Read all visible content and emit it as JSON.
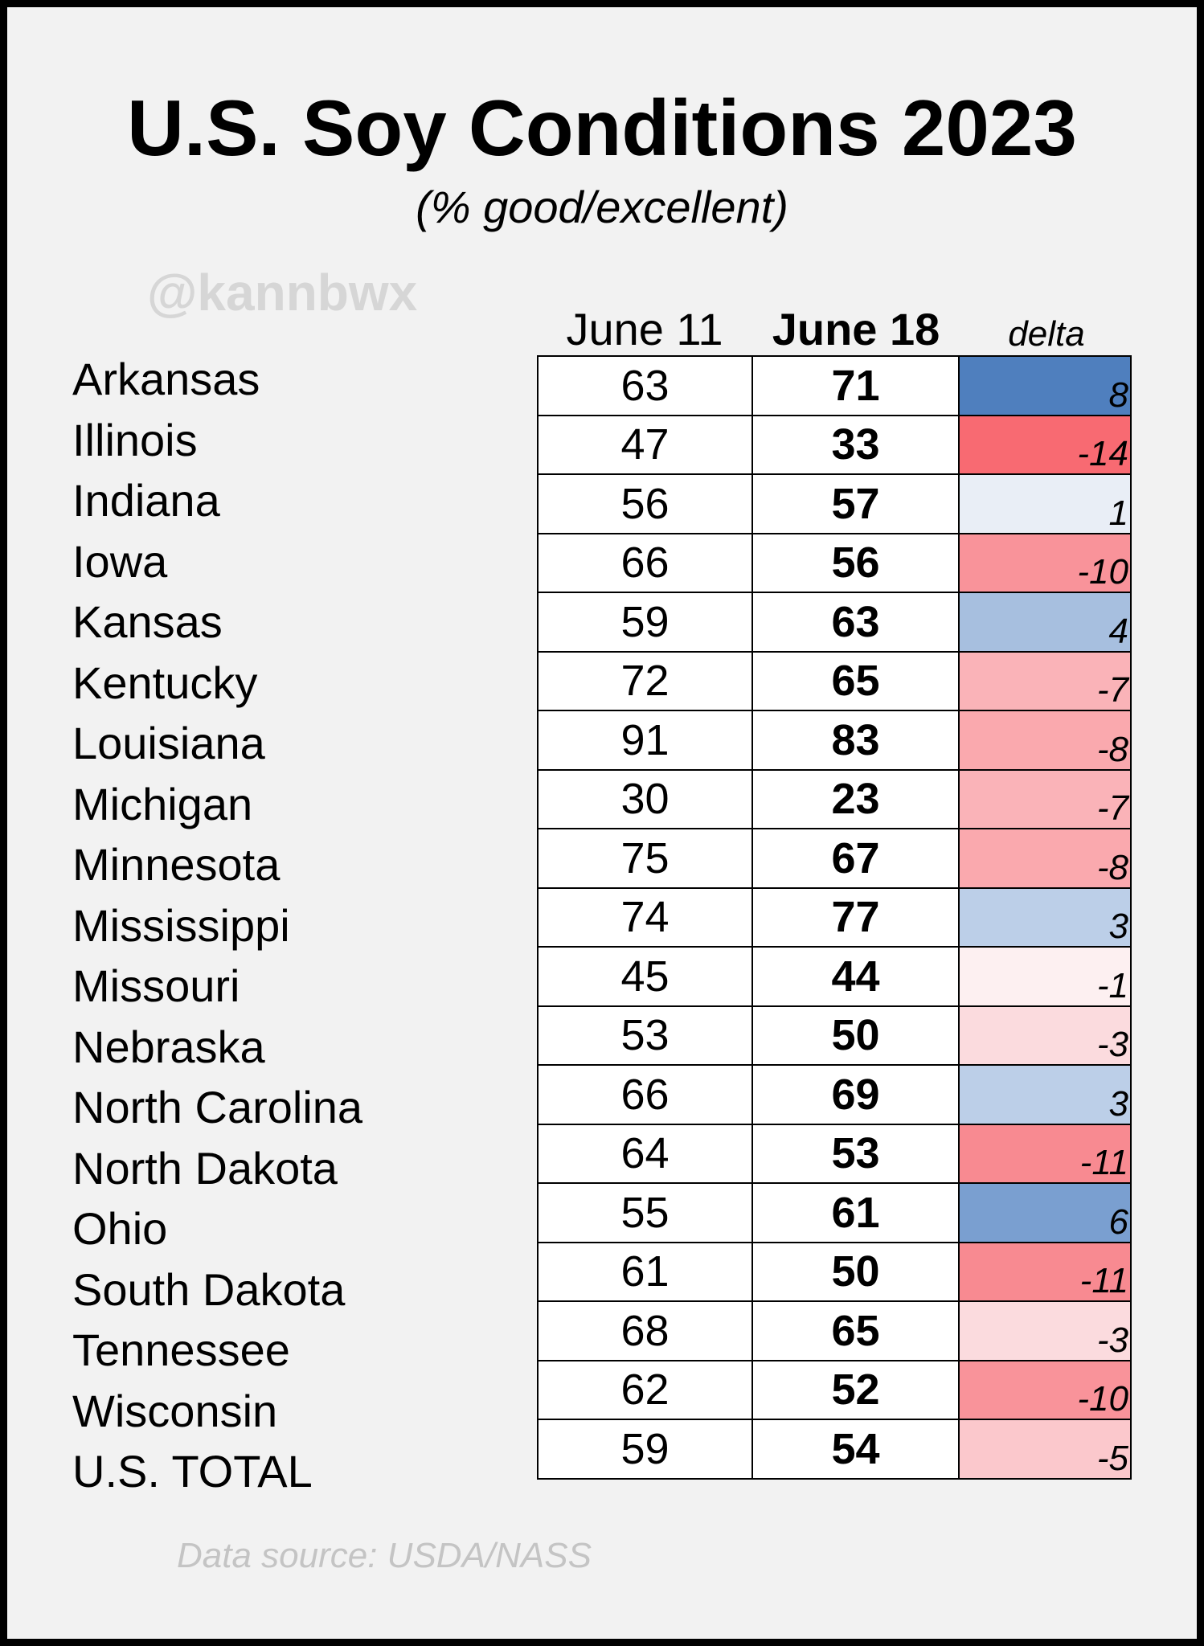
{
  "chart_data": {
    "type": "table",
    "title": "U.S. Soy Conditions 2023",
    "subtitle": "(% good/excellent)",
    "columns": [
      "June 11",
      "June 18",
      "delta"
    ],
    "rows": [
      {
        "state": "Arkansas",
        "june11": 63,
        "june18": 71,
        "delta": 8,
        "color": "#4f7fbe"
      },
      {
        "state": "Illinois",
        "june11": 47,
        "june18": 33,
        "delta": -14,
        "color": "#f86a72"
      },
      {
        "state": "Indiana",
        "june11": 56,
        "june18": 57,
        "delta": 1,
        "color": "#e9eef6"
      },
      {
        "state": "Iowa",
        "june11": 66,
        "june18": 56,
        "delta": -10,
        "color": "#f9939a"
      },
      {
        "state": "Kansas",
        "june11": 59,
        "june18": 63,
        "delta": 4,
        "color": "#a7bfdf"
      },
      {
        "state": "Kentucky",
        "june11": 72,
        "june18": 65,
        "delta": -7,
        "color": "#fab3b8"
      },
      {
        "state": "Louisiana",
        "june11": 91,
        "june18": 83,
        "delta": -8,
        "color": "#faa9ae"
      },
      {
        "state": "Michigan",
        "june11": 30,
        "june18": 23,
        "delta": -7,
        "color": "#fab3b8"
      },
      {
        "state": "Minnesota",
        "june11": 75,
        "june18": 67,
        "delta": -8,
        "color": "#faa9ae"
      },
      {
        "state": "Mississippi",
        "june11": 74,
        "june18": 77,
        "delta": 3,
        "color": "#bccfe8"
      },
      {
        "state": "Missouri",
        "june11": 45,
        "june18": 44,
        "delta": -1,
        "color": "#fdf0f1"
      },
      {
        "state": "Nebraska",
        "june11": 53,
        "june18": 50,
        "delta": -3,
        "color": "#fbdbde"
      },
      {
        "state": "North Carolina",
        "june11": 66,
        "june18": 69,
        "delta": 3,
        "color": "#bccfe8"
      },
      {
        "state": "North Dakota",
        "june11": 64,
        "june18": 53,
        "delta": -11,
        "color": "#f88a91"
      },
      {
        "state": "Ohio",
        "june11": 55,
        "june18": 61,
        "delta": 6,
        "color": "#7a9fd0"
      },
      {
        "state": "South Dakota",
        "june11": 61,
        "june18": 50,
        "delta": -11,
        "color": "#f88a91"
      },
      {
        "state": "Tennessee",
        "june11": 68,
        "june18": 65,
        "delta": -3,
        "color": "#fbdbde"
      },
      {
        "state": "Wisconsin",
        "june11": 62,
        "june18": 52,
        "delta": -10,
        "color": "#f9939a"
      },
      {
        "state": "U.S. TOTAL",
        "june11": 59,
        "june18": 54,
        "delta": -5,
        "color": "#fbc8cc"
      }
    ]
  },
  "watermark": "@kannbwx",
  "source": "Data source: USDA/NASS"
}
